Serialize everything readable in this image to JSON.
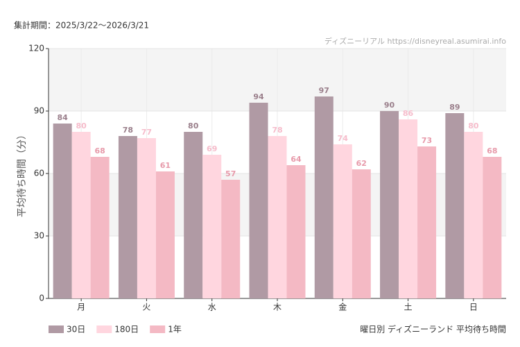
{
  "chart_data": {
    "type": "bar",
    "period": "集計期間：2025/3/22〜2026/3/21",
    "watermark": "ディズニーリアル https://disneyreal.asumirai.info",
    "y_label": "平均待ち時間（分）",
    "caption": "曜日別 ディズニーランド 平均待ち時間",
    "categories": [
      "月",
      "火",
      "水",
      "木",
      "金",
      "土",
      "日"
    ],
    "series": [
      {
        "name": "30日",
        "color": "#b09aa4",
        "label_color": "#9a7f8b",
        "values": [
          84,
          78,
          80,
          94,
          97,
          90,
          89
        ]
      },
      {
        "name": "180日",
        "color": "#ffd6df",
        "label_color": "#f6bccb",
        "values": [
          80,
          77,
          69,
          78,
          74,
          86,
          80
        ]
      },
      {
        "name": "1年",
        "color": "#f4b9c4",
        "label_color": "#e79aaa",
        "values": [
          68,
          61,
          57,
          64,
          62,
          73,
          68
        ]
      }
    ],
    "ylim": [
      0,
      120
    ],
    "yticks": [
      0,
      30,
      60,
      90,
      120
    ],
    "grid": true,
    "legend": "bottom-left"
  }
}
